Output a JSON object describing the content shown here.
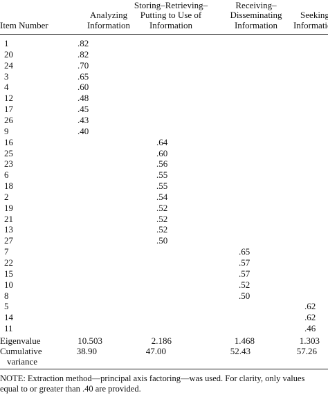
{
  "header": {
    "item_number": "Item Number",
    "col1": [
      "Analyzing",
      "Information"
    ],
    "col2": [
      "Storing–Retrieving–",
      "Putting to Use of",
      "Information"
    ],
    "col3": [
      "Receiving–",
      "Disseminating",
      "Information"
    ],
    "col4": [
      "Seeking",
      "Information"
    ]
  },
  "rows": [
    {
      "item": "1",
      "col": 1,
      "loading": ".82"
    },
    {
      "item": "20",
      "col": 1,
      "loading": ".82"
    },
    {
      "item": "24",
      "col": 1,
      "loading": ".70"
    },
    {
      "item": "3",
      "col": 1,
      "loading": ".65"
    },
    {
      "item": "4",
      "col": 1,
      "loading": ".60"
    },
    {
      "item": "12",
      "col": 1,
      "loading": ".48"
    },
    {
      "item": "17",
      "col": 1,
      "loading": ".45"
    },
    {
      "item": "26",
      "col": 1,
      "loading": ".43"
    },
    {
      "item": "9",
      "col": 1,
      "loading": ".40"
    },
    {
      "item": "16",
      "col": 2,
      "loading": ".64"
    },
    {
      "item": "25",
      "col": 2,
      "loading": ".60"
    },
    {
      "item": "23",
      "col": 2,
      "loading": ".56"
    },
    {
      "item": "6",
      "col": 2,
      "loading": ".55"
    },
    {
      "item": "18",
      "col": 2,
      "loading": ".55"
    },
    {
      "item": "2",
      "col": 2,
      "loading": ".54"
    },
    {
      "item": "19",
      "col": 2,
      "loading": ".52"
    },
    {
      "item": "21",
      "col": 2,
      "loading": ".52"
    },
    {
      "item": "13",
      "col": 2,
      "loading": ".52"
    },
    {
      "item": "27",
      "col": 2,
      "loading": ".50"
    },
    {
      "item": "7",
      "col": 3,
      "loading": ".65"
    },
    {
      "item": "22",
      "col": 3,
      "loading": ".57"
    },
    {
      "item": "15",
      "col": 3,
      "loading": ".57"
    },
    {
      "item": "10",
      "col": 3,
      "loading": ".52"
    },
    {
      "item": "8",
      "col": 3,
      "loading": ".50"
    },
    {
      "item": "5",
      "col": 4,
      "loading": ".62"
    },
    {
      "item": "14",
      "col": 4,
      "loading": ".62"
    },
    {
      "item": "11",
      "col": 4,
      "loading": ".46"
    }
  ],
  "eigenvalue": {
    "label": "Eigenvalue",
    "values": [
      "10.503",
      "2.186",
      "1.468",
      "1.303"
    ]
  },
  "cumulative": {
    "label": [
      "Cumulative",
      "variance"
    ],
    "values": [
      "38.90",
      "47.00",
      "52.43",
      "57.26"
    ]
  },
  "note": "NOTE: Extraction method—principal axis factoring—was used. For clarity, only values equal to or greater than .40 are provided."
}
